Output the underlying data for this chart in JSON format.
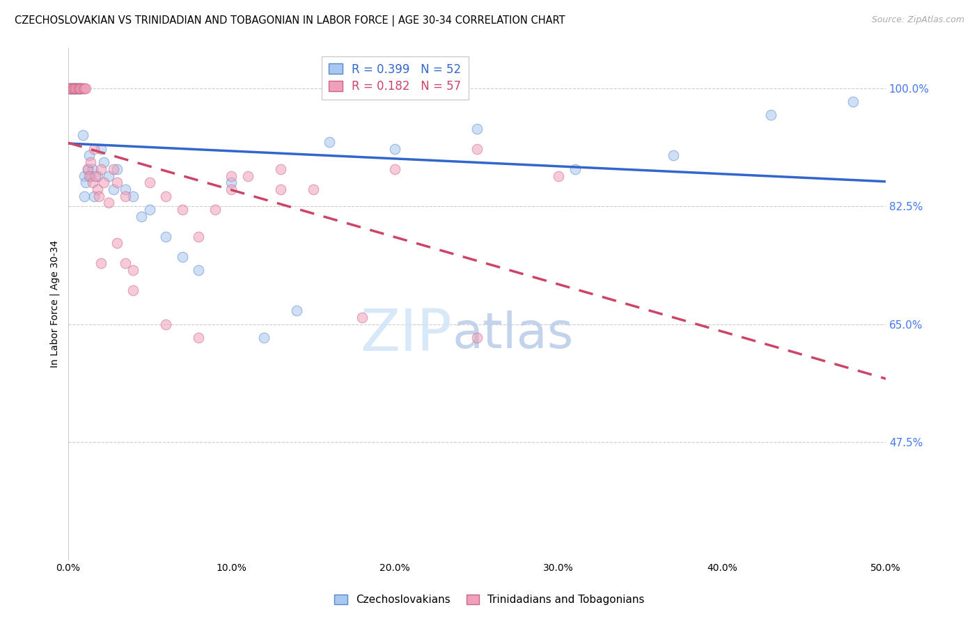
{
  "title": "CZECHOSLOVAKIAN VS TRINIDADIAN AND TOBAGONIAN IN LABOR FORCE | AGE 30-34 CORRELATION CHART",
  "source": "Source: ZipAtlas.com",
  "ylabel": "In Labor Force | Age 30-34",
  "xlim": [
    0.0,
    0.5
  ],
  "ylim": [
    0.3,
    1.06
  ],
  "ytick_labels": [
    "47.5%",
    "65.0%",
    "82.5%",
    "100.0%"
  ],
  "ytick_values": [
    0.475,
    0.65,
    0.825,
    1.0
  ],
  "xtick_labels": [
    "0.0%",
    "10.0%",
    "20.0%",
    "30.0%",
    "40.0%",
    "50.0%"
  ],
  "xtick_values": [
    0.0,
    0.1,
    0.2,
    0.3,
    0.4,
    0.5
  ],
  "legend_label1": "Czechoslovakians",
  "legend_label2": "Trinidadians and Tobagonians",
  "R1": 0.399,
  "N1": 52,
  "R2": 0.182,
  "N2": 57,
  "color1": "#a8c8f0",
  "color2": "#f0a0b8",
  "edge_color1": "#5588cc",
  "edge_color2": "#cc6688",
  "line_color1": "#3366cc",
  "line_color2": "#cc4466",
  "background_color": "#ffffff",
  "grid_color": "#cccccc",
  "watermark_color": "#d0e4f7",
  "blue_label_color": "#4477ee",
  "scatter1_x": [
    0.001,
    0.001,
    0.002,
    0.002,
    0.002,
    0.003,
    0.003,
    0.003,
    0.004,
    0.004,
    0.004,
    0.005,
    0.005,
    0.005,
    0.006,
    0.006,
    0.007,
    0.007,
    0.008,
    0.008,
    0.009,
    0.01,
    0.01,
    0.011,
    0.012,
    0.013,
    0.014,
    0.015,
    0.016,
    0.018,
    0.02,
    0.022,
    0.025,
    0.028,
    0.03,
    0.035,
    0.04,
    0.045,
    0.05,
    0.06,
    0.07,
    0.08,
    0.1,
    0.12,
    0.14,
    0.16,
    0.2,
    0.25,
    0.31,
    0.37,
    0.43,
    0.48
  ],
  "scatter1_y": [
    1.0,
    1.0,
    1.0,
    1.0,
    1.0,
    1.0,
    1.0,
    1.0,
    1.0,
    1.0,
    1.0,
    1.0,
    1.0,
    1.0,
    1.0,
    1.0,
    1.0,
    1.0,
    1.0,
    1.0,
    0.93,
    0.87,
    0.84,
    0.86,
    0.88,
    0.9,
    0.87,
    0.88,
    0.84,
    0.87,
    0.91,
    0.89,
    0.87,
    0.85,
    0.88,
    0.85,
    0.84,
    0.81,
    0.82,
    0.78,
    0.75,
    0.73,
    0.86,
    0.63,
    0.67,
    0.92,
    0.91,
    0.94,
    0.88,
    0.9,
    0.96,
    0.98
  ],
  "scatter2_x": [
    0.001,
    0.001,
    0.002,
    0.002,
    0.003,
    0.003,
    0.004,
    0.004,
    0.005,
    0.005,
    0.006,
    0.006,
    0.007,
    0.007,
    0.008,
    0.008,
    0.009,
    0.01,
    0.01,
    0.011,
    0.012,
    0.013,
    0.014,
    0.015,
    0.016,
    0.017,
    0.018,
    0.019,
    0.02,
    0.022,
    0.025,
    0.028,
    0.03,
    0.035,
    0.04,
    0.05,
    0.06,
    0.07,
    0.08,
    0.09,
    0.1,
    0.11,
    0.13,
    0.15,
    0.2,
    0.25,
    0.3,
    0.02,
    0.03,
    0.035,
    0.04,
    0.06,
    0.08,
    0.1,
    0.13,
    0.18,
    0.25
  ],
  "scatter2_y": [
    1.0,
    1.0,
    1.0,
    1.0,
    1.0,
    1.0,
    1.0,
    1.0,
    1.0,
    1.0,
    1.0,
    1.0,
    1.0,
    1.0,
    1.0,
    1.0,
    1.0,
    1.0,
    1.0,
    1.0,
    0.88,
    0.87,
    0.89,
    0.86,
    0.91,
    0.87,
    0.85,
    0.84,
    0.88,
    0.86,
    0.83,
    0.88,
    0.86,
    0.84,
    0.73,
    0.86,
    0.84,
    0.82,
    0.78,
    0.82,
    0.85,
    0.87,
    0.85,
    0.85,
    0.88,
    0.91,
    0.87,
    0.74,
    0.77,
    0.74,
    0.7,
    0.65,
    0.63,
    0.87,
    0.88,
    0.66,
    0.63
  ],
  "marker_size": 110,
  "marker_alpha": 0.55,
  "marker_lw": 0.8,
  "line_width": 2.5,
  "title_fontsize": 10.5,
  "axis_label_fontsize": 10,
  "tick_fontsize": 10,
  "legend_fontsize": 12,
  "source_fontsize": 9,
  "watermark_zip_size": 60,
  "watermark_atlas_size": 52
}
